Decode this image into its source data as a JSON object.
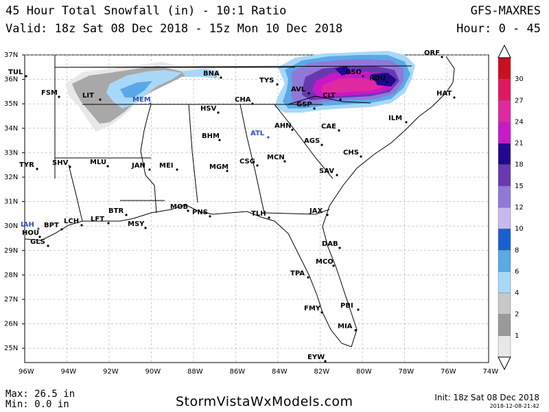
{
  "header": {
    "title": "45 Hour Total Snowfall (in) - 10:1 Ratio",
    "valid": "Valid: 18z Sat 08 Dec 2018 - 15z Mon 10 Dec 2018",
    "model": "GFS-MAXRES",
    "hour": "Hour: 0 - 45"
  },
  "axes": {
    "lat_labels": [
      "37N",
      "36N",
      "35N",
      "34N",
      "33N",
      "32N",
      "31N",
      "30N",
      "29N",
      "28N",
      "27N",
      "26N",
      "25N"
    ],
    "lon_labels": [
      "96W",
      "94W",
      "92W",
      "90W",
      "88W",
      "86W",
      "84W",
      "82W",
      "80W",
      "78W",
      "76W",
      "74W"
    ]
  },
  "colorbar": {
    "labels": [
      "30",
      "27",
      "24",
      "21",
      "18",
      "15",
      "12",
      "10",
      "8",
      "6",
      "4",
      "2",
      "1"
    ],
    "colors": [
      "#e8e8e8",
      "#9a9a9a",
      "#c8c8c8",
      "#a8d8f8",
      "#5aa8e8",
      "#1860d0",
      "#c8b8f0",
      "#9078d8",
      "#6838b0",
      "#200890",
      "#c818c8",
      "#e028a0",
      "#e01860",
      "#c81020"
    ]
  },
  "cities": [
    {
      "name": "TUL",
      "color": "#000000"
    },
    {
      "name": "FSM",
      "color": "#000000"
    },
    {
      "name": "LIT",
      "color": "#000000"
    },
    {
      "name": "MEM",
      "color": "#3050d0"
    },
    {
      "name": "BNA",
      "color": "#000000"
    },
    {
      "name": "TYS",
      "color": "#000000"
    },
    {
      "name": "GSO",
      "color": "#000000"
    },
    {
      "name": "RDU",
      "color": "#000000"
    },
    {
      "name": "ORF",
      "color": "#000000"
    },
    {
      "name": "AVL",
      "color": "#000000"
    },
    {
      "name": "CLT",
      "color": "#000000"
    },
    {
      "name": "HAT",
      "color": "#000000"
    },
    {
      "name": "CHA",
      "color": "#000000"
    },
    {
      "name": "GSP",
      "color": "#000000"
    },
    {
      "name": "HSV",
      "color": "#000000"
    },
    {
      "name": "ILM",
      "color": "#000000"
    },
    {
      "name": "AHN",
      "color": "#000000"
    },
    {
      "name": "CAE",
      "color": "#000000"
    },
    {
      "name": "BHM",
      "color": "#000000"
    },
    {
      "name": "ATL",
      "color": "#3050d0"
    },
    {
      "name": "AGS",
      "color": "#000000"
    },
    {
      "name": "CHS",
      "color": "#000000"
    },
    {
      "name": "TYR",
      "color": "#000000"
    },
    {
      "name": "SHV",
      "color": "#000000"
    },
    {
      "name": "MLU",
      "color": "#000000"
    },
    {
      "name": "JAN",
      "color": "#000000"
    },
    {
      "name": "MEI",
      "color": "#000000"
    },
    {
      "name": "MGM",
      "color": "#000000"
    },
    {
      "name": "CSG",
      "color": "#000000"
    },
    {
      "name": "MCN",
      "color": "#000000"
    },
    {
      "name": "SAV",
      "color": "#000000"
    },
    {
      "name": "BTR",
      "color": "#000000"
    },
    {
      "name": "MOB",
      "color": "#000000"
    },
    {
      "name": "PNS",
      "color": "#000000"
    },
    {
      "name": "JAX",
      "color": "#000000"
    },
    {
      "name": "TLH",
      "color": "#000000"
    },
    {
      "name": "IAH",
      "color": "#3050d0"
    },
    {
      "name": "LCH",
      "color": "#000000"
    },
    {
      "name": "LFT",
      "color": "#000000"
    },
    {
      "name": "MSY",
      "color": "#000000"
    },
    {
      "name": "BPT",
      "color": "#000000"
    },
    {
      "name": "HOU",
      "color": "#000000"
    },
    {
      "name": "GLS",
      "color": "#000000"
    },
    {
      "name": "DAB",
      "color": "#000000"
    },
    {
      "name": "MCO",
      "color": "#000000"
    },
    {
      "name": "TPA",
      "color": "#000000"
    },
    {
      "name": "PBI",
      "color": "#000000"
    },
    {
      "name": "FMY",
      "color": "#000000"
    },
    {
      "name": "MIA",
      "color": "#000000"
    },
    {
      "name": "EYW",
      "color": "#000000"
    }
  ],
  "footer": {
    "max": "Max: 26.5 in",
    "min": "Min: 0.0 in",
    "site": "StormVistaWxModels.com",
    "init": "Init: 18z Sat 08 Dec 2018",
    "generated": "2018-12-08-21:42"
  }
}
